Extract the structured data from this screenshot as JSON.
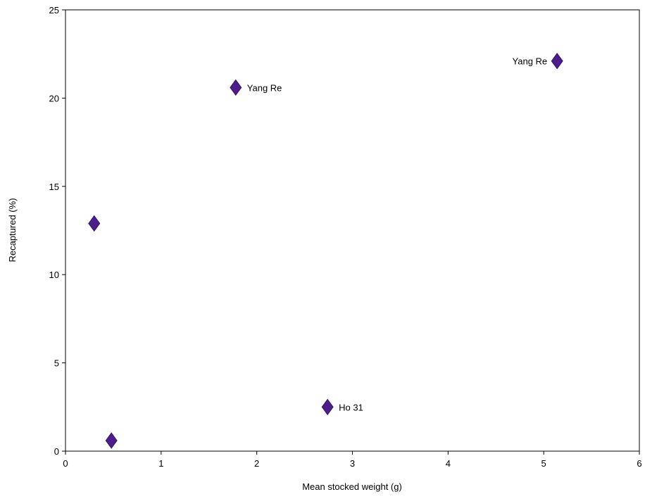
{
  "chart_data": {
    "type": "scatter",
    "title": "",
    "xlabel": "Mean stocked weight (g)",
    "ylabel": "Recaptured (%)",
    "xlim": [
      0,
      6
    ],
    "ylim": [
      0,
      25
    ],
    "xticks": [
      "0",
      "1",
      "2",
      "3",
      "4",
      "5",
      "6"
    ],
    "yticks": [
      "0",
      "5",
      "10",
      "15",
      "20",
      "25"
    ],
    "grid": false,
    "legend": "none",
    "marker": "diamond",
    "marker_color": "#4B1E8C",
    "points": [
      {
        "x": 0.3,
        "y": 12.9,
        "label": ""
      },
      {
        "x": 0.48,
        "y": 0.6,
        "label": ""
      },
      {
        "x": 1.78,
        "y": 20.6,
        "label": "Yang Re",
        "label_side": "right"
      },
      {
        "x": 2.74,
        "y": 2.5,
        "label": "Ho 31",
        "label_side": "right"
      },
      {
        "x": 5.14,
        "y": 22.1,
        "label": "Yang Re",
        "label_side": "left"
      }
    ]
  }
}
